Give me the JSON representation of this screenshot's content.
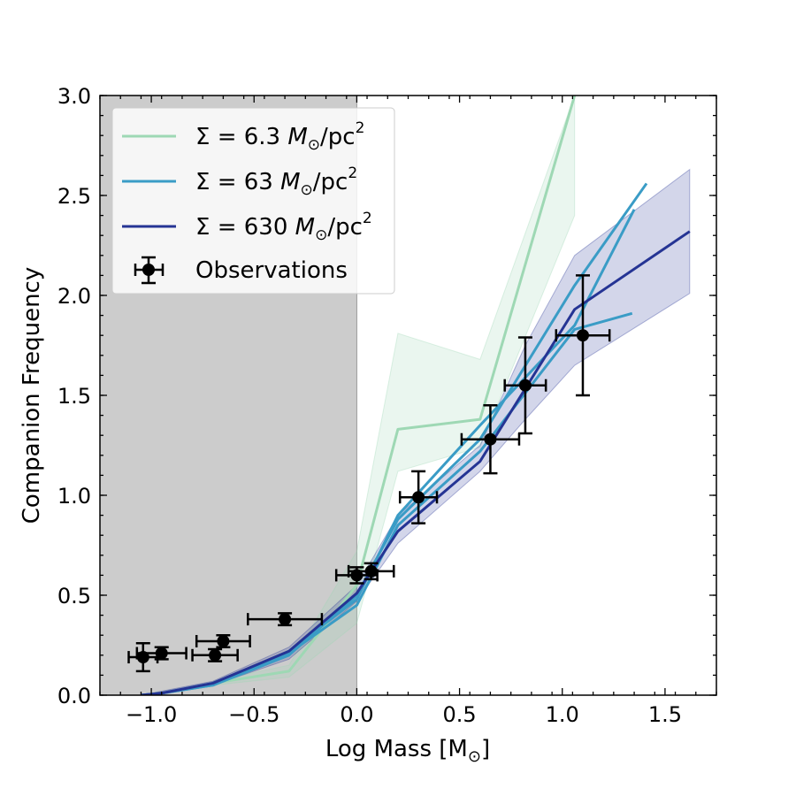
{
  "chart_data": {
    "type": "line",
    "title": "",
    "xlabel": "Log Mass [M",
    "xlabel_sub": "⊙",
    "xlabel_close": "]",
    "ylabel": "Companion Frequency",
    "xlim": [
      -1.25,
      1.75
    ],
    "ylim": [
      0,
      3
    ],
    "xticks": [
      -1.0,
      -0.5,
      0.0,
      0.5,
      1.0,
      1.5
    ],
    "xtick_labels": [
      "−1.0",
      "−0.5",
      "0.0",
      "0.5",
      "1.0",
      "1.5"
    ],
    "yticks": [
      0.0,
      0.5,
      1.0,
      1.5,
      2.0,
      2.5,
      3.0
    ],
    "ytick_labels": [
      "0.0",
      "0.5",
      "1.0",
      "1.5",
      "2.0",
      "2.5",
      "3.0"
    ],
    "shaded_region": {
      "x_from": -1.25,
      "x_to": 0.0,
      "color": "#cccccc"
    },
    "legend": {
      "position": "upper-left",
      "entries": [
        {
          "prefix": "Σ = 6.3 ",
          "mass_symbol": "M",
          "sun_sub": "⊙",
          "unit": "/pc",
          "sup": "2",
          "color": "#9ed8b4",
          "kind": "line"
        },
        {
          "prefix": "Σ = 63 ",
          "mass_symbol": "M",
          "sun_sub": "⊙",
          "unit": "/pc",
          "sup": "2",
          "color": "#3a9cc6",
          "kind": "line"
        },
        {
          "prefix": "Σ = 630 ",
          "mass_symbol": "M",
          "sun_sub": "⊙",
          "unit": "/pc",
          "sup": "2",
          "color": "#253494",
          "kind": "line"
        },
        {
          "label": "Observations",
          "color": "#000000",
          "kind": "errorbar"
        }
      ]
    },
    "series": [
      {
        "name": "Σ = 6.3 M⊙/pc² (band)",
        "kind": "band",
        "color": "#9ed8b4",
        "opacity": 0.22,
        "x": [
          -0.7,
          -0.33,
          0.0,
          0.2,
          0.6,
          1.06
        ],
        "lower": [
          0.05,
          0.09,
          0.36,
          1.12,
          1.24,
          2.4
        ],
        "upper": [
          0.07,
          0.15,
          0.72,
          1.81,
          1.68,
          3.0
        ]
      },
      {
        "name": "Σ = 630 M⊙/pc² (band)",
        "kind": "band",
        "color": "#253494",
        "opacity": 0.2,
        "x": [
          -1.05,
          -0.7,
          -0.33,
          0.0,
          0.2,
          0.6,
          0.82,
          1.06,
          1.62
        ],
        "lower": [
          0.0,
          0.05,
          0.18,
          0.47,
          0.76,
          1.12,
          1.38,
          1.65,
          2.01
        ],
        "upper": [
          0.0,
          0.07,
          0.24,
          0.55,
          0.9,
          1.25,
          1.75,
          2.2,
          2.63
        ]
      },
      {
        "name": "Σ = 6.3 M⊙/pc²",
        "kind": "line",
        "color": "#9ed8b4",
        "x": [
          -0.7,
          -0.33,
          0.0,
          0.2,
          0.6,
          1.06
        ],
        "y": [
          0.06,
          0.12,
          0.55,
          1.33,
          1.38,
          3.0
        ]
      },
      {
        "name": "Σ = 63 M⊙/pc² (run a)",
        "kind": "line",
        "color": "#3a9cc6",
        "x": [
          -1.05,
          -0.95,
          -0.7,
          -0.33,
          0.0,
          0.2,
          0.6,
          1.06,
          1.41
        ],
        "y": [
          0.0,
          0.01,
          0.05,
          0.2,
          0.5,
          0.88,
          1.28,
          2.05,
          2.56
        ]
      },
      {
        "name": "Σ = 63 M⊙/pc² (run b)",
        "kind": "line",
        "color": "#3a9cc6",
        "x": [
          -1.05,
          -0.95,
          -0.7,
          -0.33,
          0.0,
          0.2,
          0.6,
          1.06,
          1.35
        ],
        "y": [
          0.0,
          0.01,
          0.05,
          0.22,
          0.48,
          0.9,
          1.35,
          1.85,
          2.43
        ]
      },
      {
        "name": "Σ = 63 M⊙/pc² (run c)",
        "kind": "line",
        "color": "#3a9cc6",
        "x": [
          -1.05,
          -0.95,
          -0.7,
          -0.33,
          0.0,
          0.2,
          0.6,
          1.06,
          1.34
        ],
        "y": [
          0.0,
          0.01,
          0.06,
          0.21,
          0.45,
          0.85,
          1.22,
          1.83,
          1.91
        ]
      },
      {
        "name": "Σ = 630 M⊙/pc²",
        "kind": "line",
        "color": "#253494",
        "x": [
          -1.05,
          -0.95,
          -0.7,
          -0.33,
          0.0,
          0.2,
          0.6,
          1.06,
          1.62
        ],
        "y": [
          0.0,
          0.01,
          0.06,
          0.22,
          0.51,
          0.82,
          1.17,
          1.93,
          2.32
        ]
      }
    ],
    "observations": {
      "name": "Observations",
      "color": "#000000",
      "points": [
        {
          "x": -1.04,
          "y": 0.19,
          "xerr": 0.07,
          "yerr": 0.07
        },
        {
          "x": -0.95,
          "y": 0.21,
          "xerr": 0.12,
          "yerr": 0.03
        },
        {
          "x": -0.69,
          "y": 0.2,
          "xerr": 0.11,
          "yerr": 0.03
        },
        {
          "x": -0.65,
          "y": 0.27,
          "xerr": 0.13,
          "yerr": 0.03
        },
        {
          "x": -0.35,
          "y": 0.38,
          "xerr": 0.18,
          "yerr": 0.03
        },
        {
          "x": 0.0,
          "y": 0.6,
          "xerr": 0.1,
          "yerr": 0.04
        },
        {
          "x": 0.07,
          "y": 0.62,
          "xerr": 0.11,
          "yerr": 0.04
        },
        {
          "x": 0.3,
          "y": 0.99,
          "xerr": 0.09,
          "yerr": 0.13
        },
        {
          "x": 0.65,
          "y": 1.28,
          "xerr": 0.14,
          "yerr": 0.17
        },
        {
          "x": 0.82,
          "y": 1.55,
          "xerr": 0.1,
          "yerr": 0.24
        },
        {
          "x": 1.1,
          "y": 1.8,
          "xerr": 0.13,
          "yerr": 0.3
        }
      ]
    }
  }
}
